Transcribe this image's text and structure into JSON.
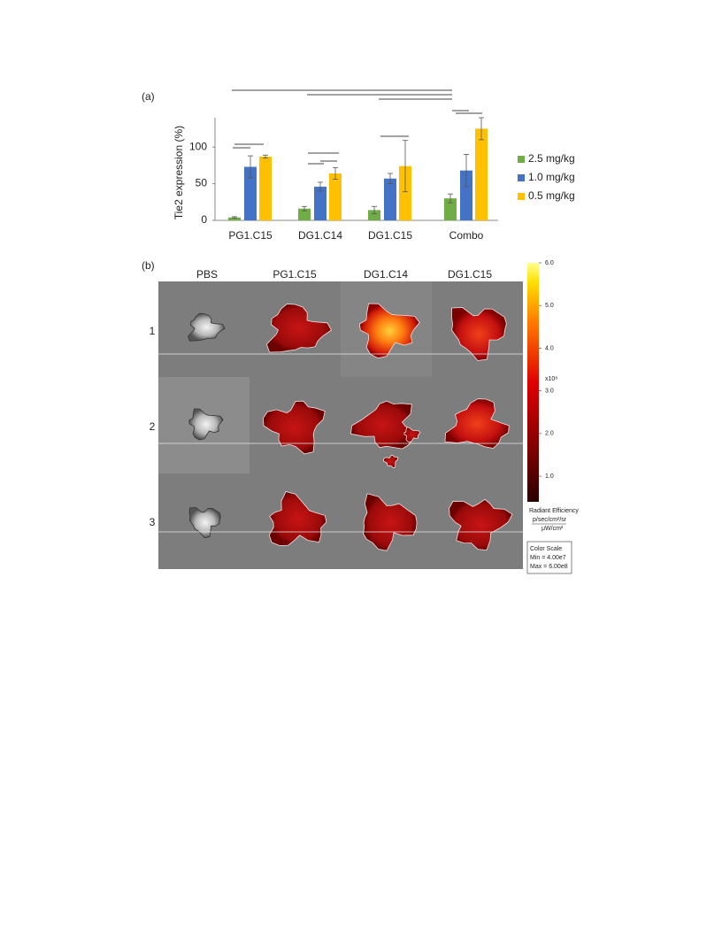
{
  "panel_a_label": "(a)",
  "chart_data": {
    "type": "bar",
    "y_label": "Tie2 expression (%)",
    "categories": [
      "PG1.C15",
      "DG1.C14",
      "DG1.C15",
      "Combo"
    ],
    "series": [
      {
        "name": "2.5 mg/kg",
        "color": "#70ad47",
        "values": [
          4,
          16,
          14,
          30
        ],
        "errors": [
          1,
          3,
          5,
          6
        ]
      },
      {
        "name": "1.0 mg/kg",
        "color": "#4472c4",
        "values": [
          73,
          46,
          57,
          68
        ],
        "errors": [
          15,
          6,
          7,
          22
        ]
      },
      {
        "name": "0.5 mg/kg",
        "color": "#ffc000",
        "values": [
          87,
          64,
          74,
          125
        ],
        "errors": [
          2,
          8,
          35,
          15
        ]
      }
    ],
    "ylim": [
      0,
      140
    ],
    "yticks": [
      0,
      50,
      100
    ],
    "legend": "right"
  },
  "panel_b": {
    "label": "(b)",
    "columns": [
      "PBS",
      "PG1.C15",
      "DG1.C14",
      "DG1.C15"
    ],
    "rows": [
      "1",
      "2",
      "3"
    ],
    "colorbar": {
      "range": [
        0.4,
        6
      ],
      "ticks": [
        {
          "value": 1,
          "label": "1.0"
        },
        {
          "value": 2,
          "label": "2.0"
        },
        {
          "value": 3,
          "label": "3.0"
        },
        {
          "value": 4,
          "label": "4.0"
        },
        {
          "value": 5,
          "label": "5.0"
        },
        {
          "value": 6,
          "label": "6.0"
        }
      ],
      "multiplier": "x10⁸",
      "title": "Radiant Efficiency",
      "unit_numerator": "p/sec/cm²/sr",
      "unit_denominator": "μW/cm²"
    },
    "color_scale": {
      "title": "Color Scale",
      "min": "Min = 4.00e7",
      "max": "Max = 6.00e8"
    }
  }
}
